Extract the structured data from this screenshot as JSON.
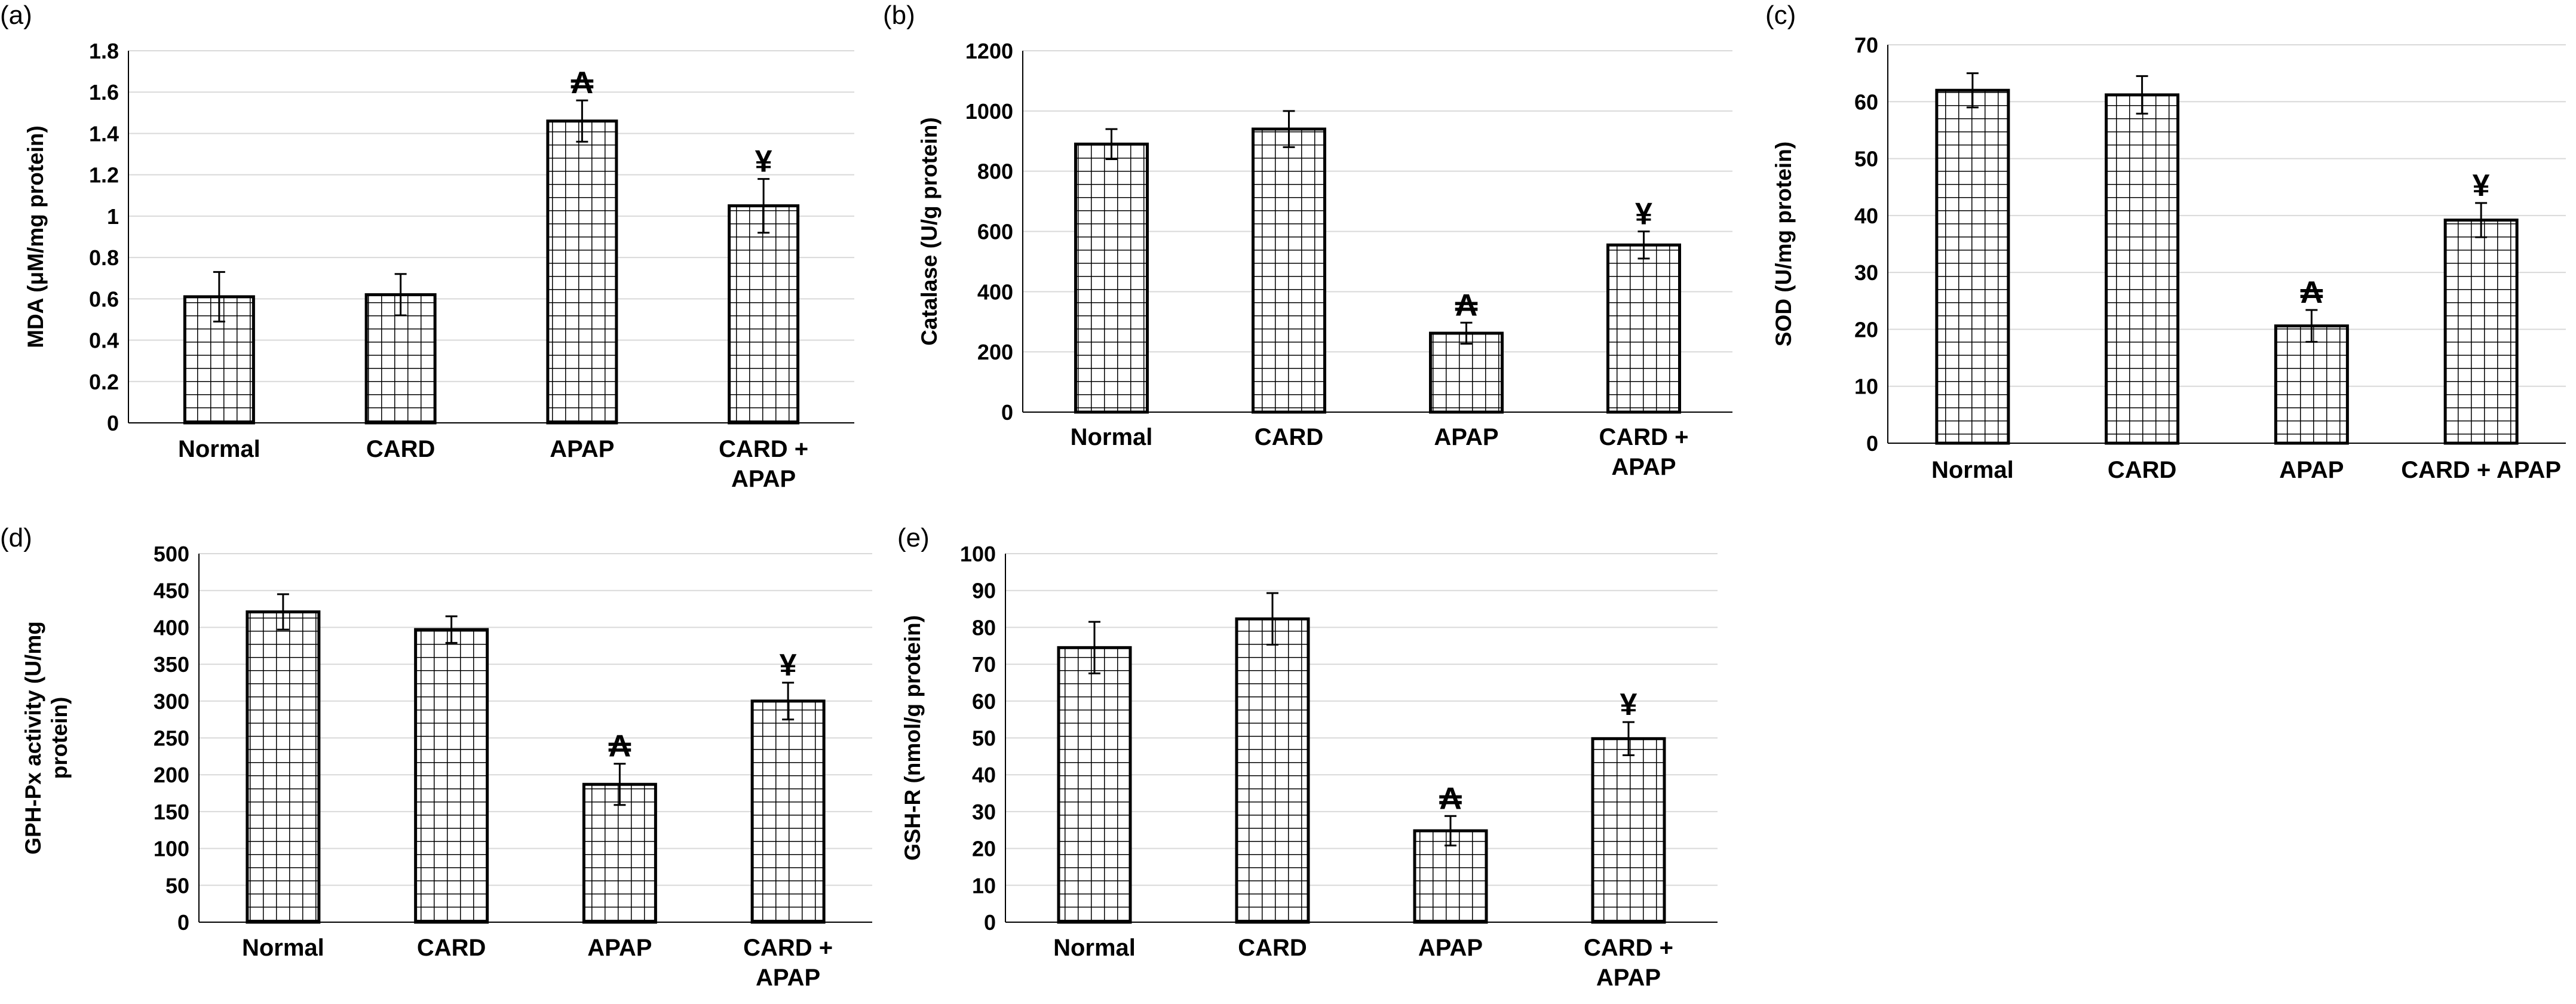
{
  "style": {
    "bar_pattern_color": "#000000",
    "grid_color": "#d9d9d9",
    "background": "#ffffff"
  },
  "chart_data": [
    {
      "panel": "(a)",
      "type": "bar",
      "categories": [
        [
          "Normal"
        ],
        [
          "CARD"
        ],
        [
          "APAP"
        ],
        [
          "CARD +",
          "APAP"
        ]
      ],
      "values": [
        0.61,
        0.62,
        1.46,
        1.05
      ],
      "errors": [
        0.12,
        0.1,
        0.1,
        0.13
      ],
      "markers": [
        "",
        "",
        "₳",
        "¥"
      ],
      "ylabel": [
        "MDA (μM/mg protein)"
      ],
      "ylim": [
        0,
        1.8
      ],
      "yticks": [
        0,
        0.2,
        0.4,
        0.6,
        0.8,
        1,
        1.2,
        1.4,
        1.6,
        1.8
      ],
      "ytick_labels": [
        "0",
        "0.2",
        "0.4",
        "0.6",
        "0.8",
        "1",
        "1.2",
        "1.4",
        "1.6",
        "1.8"
      ],
      "grid": true
    },
    {
      "panel": "(b)",
      "type": "bar",
      "categories": [
        [
          "Normal"
        ],
        [
          "CARD"
        ],
        [
          "APAP"
        ],
        [
          "CARD +",
          "APAP"
        ]
      ],
      "values": [
        890,
        940,
        262,
        555
      ],
      "errors": [
        50,
        60,
        35,
        45
      ],
      "markers": [
        "",
        "",
        "₳",
        "¥"
      ],
      "ylabel": [
        "Catalase (U/g protein)"
      ],
      "ylim": [
        0,
        1200
      ],
      "yticks": [
        0,
        200,
        400,
        600,
        800,
        1000,
        1200
      ],
      "ytick_labels": [
        "0",
        "200",
        "400",
        "600",
        "800",
        "1000",
        "1200"
      ],
      "grid": true
    },
    {
      "panel": "(c)",
      "type": "bar",
      "categories": [
        [
          "Normal"
        ],
        [
          "CARD"
        ],
        [
          "APAP"
        ],
        [
          "CARD + APAP"
        ]
      ],
      "values": [
        62,
        61.2,
        20.6,
        39.2
      ],
      "errors": [
        3.0,
        3.3,
        2.8,
        3.0
      ],
      "markers": [
        "",
        "",
        "₳",
        "¥"
      ],
      "ylabel": [
        "SOD (U/mg protein)"
      ],
      "ylim": [
        0,
        70
      ],
      "yticks": [
        0,
        10,
        20,
        30,
        40,
        50,
        60,
        70
      ],
      "ytick_labels": [
        "0",
        "10",
        "20",
        "30",
        "40",
        "50",
        "60",
        "70"
      ],
      "grid": true
    },
    {
      "panel": "(d)",
      "type": "bar",
      "categories": [
        [
          "Normal"
        ],
        [
          "CARD"
        ],
        [
          "APAP"
        ],
        [
          "CARD +",
          "APAP"
        ]
      ],
      "values": [
        421,
        397,
        187,
        300
      ],
      "errors": [
        24,
        18,
        28,
        25
      ],
      "markers": [
        "",
        "",
        "₳",
        "¥"
      ],
      "ylabel": [
        "GPH-Px activity (U/mg",
        "protein)"
      ],
      "ylim": [
        0,
        500
      ],
      "yticks": [
        0,
        50,
        100,
        150,
        200,
        250,
        300,
        350,
        400,
        450,
        500
      ],
      "ytick_labels": [
        "0",
        "50",
        "100",
        "150",
        "200",
        "250",
        "300",
        "350",
        "400",
        "450",
        "500"
      ],
      "grid": true
    },
    {
      "panel": "(e)",
      "type": "bar",
      "categories": [
        [
          "Normal"
        ],
        [
          "CARD"
        ],
        [
          "APAP"
        ],
        [
          "CARD +",
          "APAP"
        ]
      ],
      "values": [
        74.5,
        82.3,
        24.8,
        49.8
      ],
      "errors": [
        7,
        7,
        4,
        4.5
      ],
      "markers": [
        "",
        "",
        "₳",
        "¥"
      ],
      "ylabel": [
        "GSH-R (nmol/g protein)"
      ],
      "ylim": [
        0,
        100
      ],
      "yticks": [
        0,
        10,
        20,
        30,
        40,
        50,
        60,
        70,
        80,
        90,
        100
      ],
      "ytick_labels": [
        "0",
        "10",
        "20",
        "30",
        "40",
        "50",
        "60",
        "70",
        "80",
        "90",
        "100"
      ],
      "grid": true
    }
  ]
}
